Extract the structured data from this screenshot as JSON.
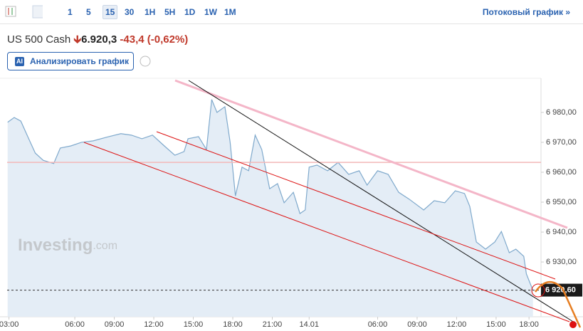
{
  "toolbar": {
    "intervals": [
      "1",
      "5",
      "15",
      "30",
      "1H",
      "5H",
      "1D",
      "1W",
      "1M"
    ],
    "selected_interval": 2,
    "stream_link": "Потоковый график »"
  },
  "header": {
    "symbol": "US 500 Cash",
    "price": "6.920,3",
    "change": "-43,4",
    "change_percent": "(-0,62%)"
  },
  "analyze_button": {
    "badge": "AI",
    "label": "Анализировать график"
  },
  "watermark": {
    "name": "Investing",
    "suffix": ".com"
  },
  "chart_data": {
    "type": "area",
    "color": "#7fa9cc",
    "fill": "#e4edf6",
    "x": [
      -5.1,
      -4.6,
      -4.1,
      -3.5,
      -3.0,
      -2.4,
      -1.6,
      -1.1,
      -0.3,
      0.5,
      1.4,
      2.4,
      3.5,
      4.3,
      5.1,
      5.9,
      6.8,
      7.6,
      8.3,
      8.6,
      9.4,
      10.0,
      10.4,
      10.8,
      11.4,
      11.8,
      12.2,
      12.7,
      13.2,
      13.7,
      14.2,
      14.8,
      15.4,
      15.9,
      16.6,
      17.1,
      17.5,
      17.8,
      18.4,
      19.2,
      20.0,
      20.8,
      21.6,
      22.2,
      23.0,
      23.8,
      24.6,
      25.4,
      26.5,
      27.3,
      28.1,
      28.9,
      29.6,
      30.0,
      30.5,
      31.2,
      31.9,
      32.4,
      33.0,
      33.5,
      34.1,
      34.3,
      34.8
    ],
    "values": [
      6976.7,
      6978.3,
      6977.1,
      6971.2,
      6966.4,
      6964.0,
      6962.9,
      6968.1,
      6968.8,
      6970.0,
      6970.5,
      6971.7,
      6972.9,
      6972.4,
      6971.2,
      6972.4,
      6968.8,
      6965.7,
      6966.9,
      6971.2,
      6971.9,
      6967.6,
      6984.3,
      6980.0,
      6981.9,
      6970.0,
      6952.1,
      6961.7,
      6960.5,
      6972.4,
      6967.6,
      6954.5,
      6956.2,
      6949.8,
      6953.3,
      6946.2,
      6947.4,
      6961.7,
      6962.4,
      6960.5,
      6963.3,
      6959.3,
      6960.5,
      6955.7,
      6960.5,
      6959.3,
      6953.3,
      6951.0,
      6947.4,
      6950.5,
      6949.8,
      6953.8,
      6952.9,
      6948.6,
      6936.7,
      6934.3,
      6936.7,
      6940.2,
      6933.1,
      6934.3,
      6931.9,
      6926.0,
      6920.5
    ],
    "xlim": [
      -5.14,
      35.41
    ],
    "ylim": [
      6911.7,
      6991.4
    ],
    "xticks": [
      {
        "value": -5,
        "label": "03:00"
      },
      {
        "value": 0,
        "label": "06:00"
      },
      {
        "value": 3,
        "label": "09:00"
      },
      {
        "value": 6,
        "label": "12:00"
      },
      {
        "value": 9,
        "label": "15:00"
      },
      {
        "value": 12,
        "label": "18:00"
      },
      {
        "value": 15,
        "label": "21:00"
      },
      {
        "value": 17.8,
        "label": "14.01"
      },
      {
        "value": 23,
        "label": "06:00"
      },
      {
        "value": 26,
        "label": "09:00"
      },
      {
        "value": 29,
        "label": "12:00"
      },
      {
        "value": 32,
        "label": "15:00"
      },
      {
        "value": 34.5,
        "label": "18:00"
      }
    ],
    "yticks": [
      {
        "value": 6930,
        "label": "6 930,00"
      },
      {
        "value": 6940,
        "label": "6 940,00"
      },
      {
        "value": 6950,
        "label": "6 950,00"
      },
      {
        "value": 6960,
        "label": "6 960,00"
      },
      {
        "value": 6970,
        "label": "6 970,00"
      },
      {
        "value": 6980,
        "label": "6 980,00"
      }
    ],
    "last_price": {
      "value": 6920.6,
      "label": "6 920,60"
    },
    "reference_line": {
      "value": 6963.3,
      "color": "#f3b8b8"
    }
  }
}
